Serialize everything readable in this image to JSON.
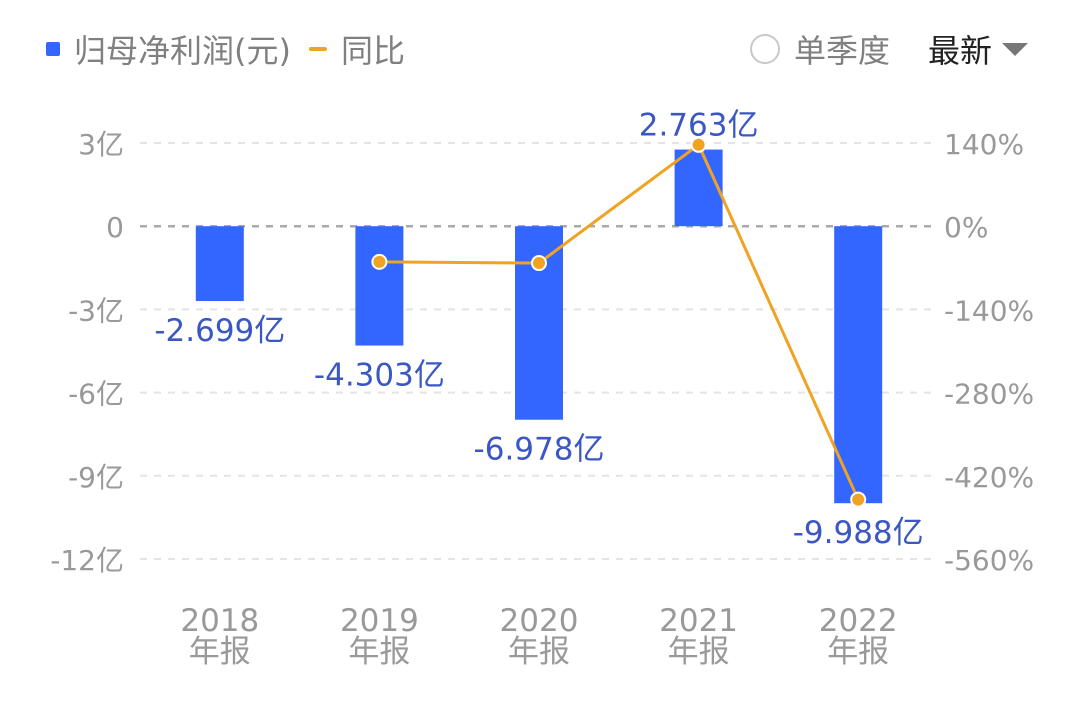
{
  "legend": {
    "bar_label": "归母净利润(元)",
    "line_label": "同比"
  },
  "controls": {
    "quarter_label": "单季度",
    "latest_label": "最新"
  },
  "colors": {
    "bar": "#3366ff",
    "line": "#f0a322",
    "data_label": "#3a57c4",
    "axis_text": "#999999",
    "grid": "#e4e4e4",
    "zero_line": "#aaaaaa"
  },
  "chart_data": {
    "type": "bar",
    "categories": [
      "2018\n年报",
      "2019\n年报",
      "2020\n年报",
      "2021\n年报",
      "2022\n年报"
    ],
    "series": [
      {
        "name": "归母净利润(元)",
        "type": "bar",
        "axis": "left",
        "values": [
          -2.699,
          -4.303,
          -6.978,
          2.763,
          -9.988
        ],
        "labels": [
          "-2.699亿",
          "-4.303亿",
          "-6.978亿",
          "2.763亿",
          "-9.988亿"
        ]
      },
      {
        "name": "同比",
        "type": "line",
        "axis": "right",
        "values": [
          null,
          -60,
          -62,
          137,
          -460
        ]
      }
    ],
    "left_axis": {
      "ylim": [
        -12,
        3
      ],
      "ticks": [
        3,
        0,
        -3,
        -6,
        -9,
        -12
      ],
      "tick_labels": [
        "3亿",
        "0",
        "-3亿",
        "-6亿",
        "-9亿",
        "-12亿"
      ]
    },
    "right_axis": {
      "ylim": [
        -560,
        140
      ],
      "ticks": [
        140,
        0,
        -140,
        -280,
        -420,
        -560
      ],
      "tick_labels": [
        "140%",
        "0%",
        "-140%",
        "-280%",
        "-420%",
        "-560%"
      ]
    },
    "grid": true,
    "legend_position": "top-left"
  }
}
